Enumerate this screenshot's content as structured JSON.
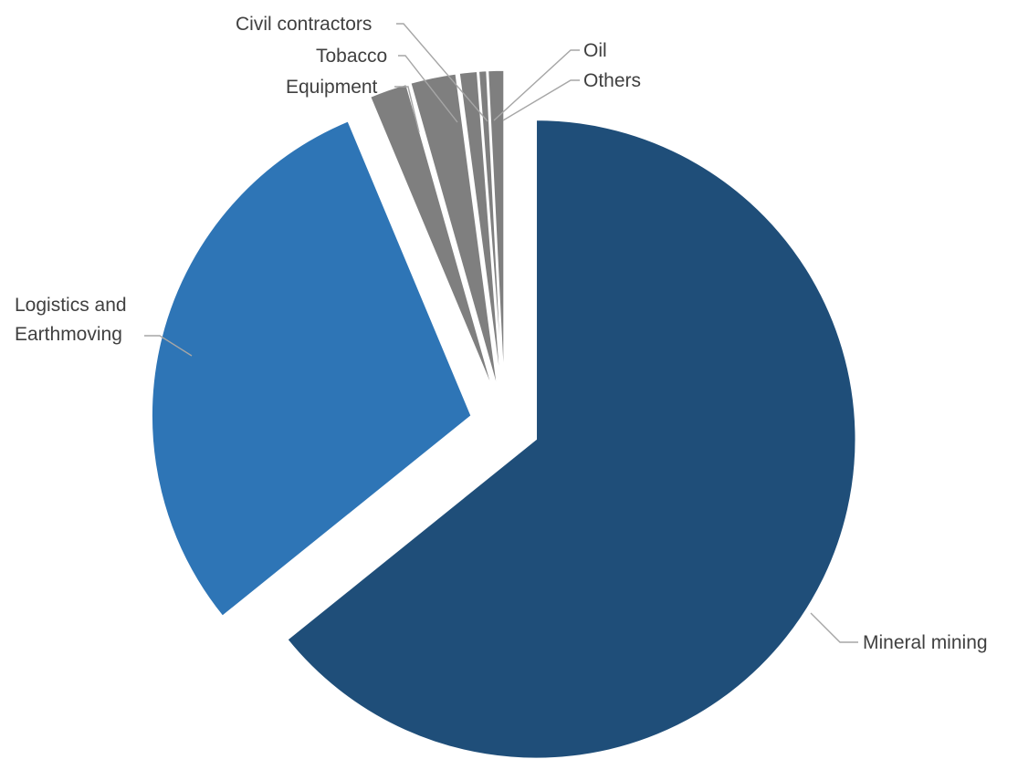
{
  "chart_data": {
    "type": "pie",
    "slices": [
      {
        "label": "Mineral mining",
        "value": 64.2,
        "color": "#1f4e79"
      },
      {
        "label": "Logistics and Earthmoving",
        "value": 29.5,
        "color": "#2e75b6"
      },
      {
        "label": "Equipment",
        "value": 1.9,
        "color": "#7f7f7f"
      },
      {
        "label": "Tobacco",
        "value": 2.3,
        "color": "#7f7f7f"
      },
      {
        "label": "Civil contractors",
        "value": 0.9,
        "color": "#7f7f7f"
      },
      {
        "label": "Oil",
        "value": 0.4,
        "color": "#7f7f7f"
      },
      {
        "label": "Others",
        "value": 0.8,
        "color": "#7f7f7f"
      }
    ],
    "exploded": true,
    "legend": "none",
    "label_style": "outside with leader lines"
  }
}
